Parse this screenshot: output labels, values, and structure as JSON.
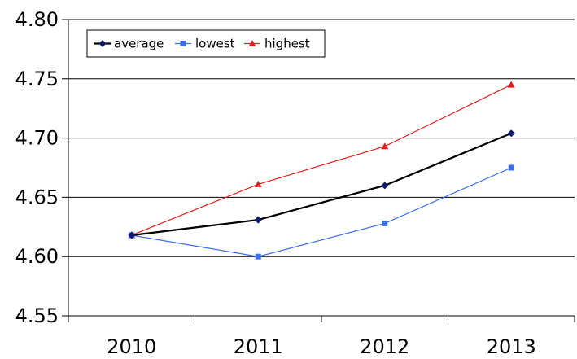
{
  "chart_data": {
    "type": "line",
    "categories": [
      "2010",
      "2011",
      "2012",
      "2013"
    ],
    "series": [
      {
        "name": "average",
        "values": [
          4.618,
          4.631,
          4.66,
          4.704
        ],
        "color": "#000000",
        "marker": "diamond",
        "marker_color": "#0a1a6e"
      },
      {
        "name": "lowest",
        "values": [
          4.618,
          4.6,
          4.628,
          4.675
        ],
        "color": "#3c6ee8",
        "marker": "square",
        "marker_color": "#3c6ee8"
      },
      {
        "name": "highest",
        "values": [
          4.618,
          4.661,
          4.693,
          4.745
        ],
        "color": "#e02020",
        "marker": "triangle",
        "marker_color": "#e02020"
      }
    ],
    "ylim": [
      4.55,
      4.8
    ],
    "y_ticks": [
      "4.55",
      "4.60",
      "4.65",
      "4.70",
      "4.75",
      "4.80"
    ],
    "grid": "horizontal",
    "legend_position": "top-left",
    "title": "",
    "xlabel": "",
    "ylabel": ""
  }
}
